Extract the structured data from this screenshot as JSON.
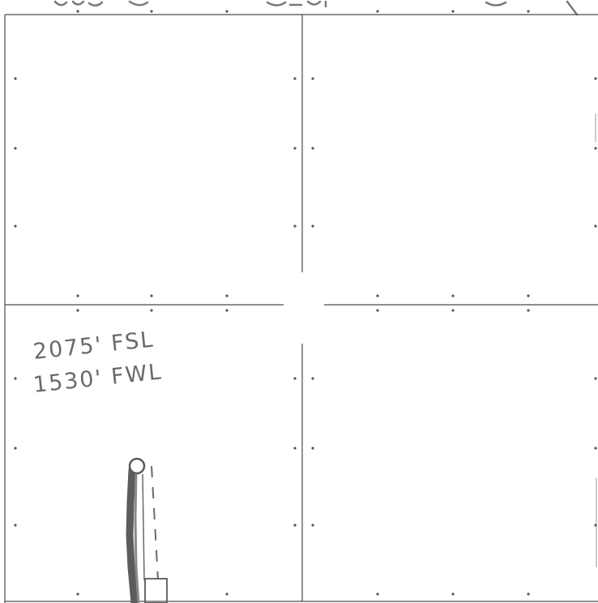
{
  "footage_notes": {
    "line1": "2075' FSL",
    "line2": "1530' FWL"
  },
  "colors": {
    "line": "#4a4a4a",
    "ink": "#6a6a6a",
    "well_trace": "#5c5c5c",
    "paper": "#ffffff"
  }
}
